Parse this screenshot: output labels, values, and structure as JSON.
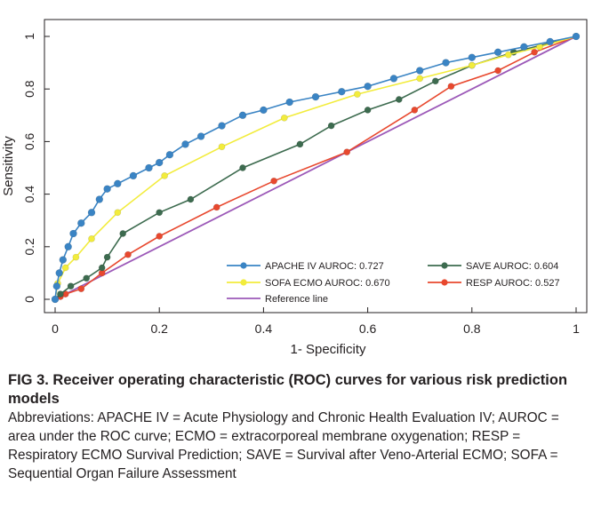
{
  "chart_data": {
    "type": "line",
    "xlabel": "1- Specificity",
    "ylabel": "Sensitivity",
    "xlim": [
      0,
      1
    ],
    "ylim": [
      0,
      1
    ],
    "x_ticks": [
      "0",
      "0.2",
      "0.4",
      "0.6",
      "0.8",
      "1"
    ],
    "y_ticks": [
      "0",
      "0.2",
      "0.4",
      "0.6",
      "0.8",
      "1"
    ],
    "grid": false,
    "legend_position": "bottom-right",
    "series": [
      {
        "name": "APACHE IV AUROC: 0.727",
        "color": "#3a84c4",
        "marker": "circle",
        "points": [
          [
            0,
            0
          ],
          [
            0.003,
            0.05
          ],
          [
            0.008,
            0.1
          ],
          [
            0.015,
            0.15
          ],
          [
            0.025,
            0.2
          ],
          [
            0.035,
            0.25
          ],
          [
            0.05,
            0.29
          ],
          [
            0.07,
            0.33
          ],
          [
            0.085,
            0.38
          ],
          [
            0.1,
            0.42
          ],
          [
            0.12,
            0.44
          ],
          [
            0.15,
            0.47
          ],
          [
            0.18,
            0.5
          ],
          [
            0.2,
            0.52
          ],
          [
            0.22,
            0.55
          ],
          [
            0.25,
            0.59
          ],
          [
            0.28,
            0.62
          ],
          [
            0.32,
            0.66
          ],
          [
            0.36,
            0.7
          ],
          [
            0.4,
            0.72
          ],
          [
            0.45,
            0.75
          ],
          [
            0.5,
            0.77
          ],
          [
            0.55,
            0.79
          ],
          [
            0.6,
            0.81
          ],
          [
            0.65,
            0.84
          ],
          [
            0.7,
            0.87
          ],
          [
            0.75,
            0.9
          ],
          [
            0.8,
            0.92
          ],
          [
            0.85,
            0.94
          ],
          [
            0.9,
            0.96
          ],
          [
            0.95,
            0.98
          ],
          [
            1,
            1
          ]
        ]
      },
      {
        "name": "SOFA ECMO AUROC: 0.670",
        "color": "#f2ec3c",
        "marker": "circle",
        "points": [
          [
            0,
            0
          ],
          [
            0.005,
            0.06
          ],
          [
            0.02,
            0.12
          ],
          [
            0.04,
            0.16
          ],
          [
            0.07,
            0.23
          ],
          [
            0.12,
            0.33
          ],
          [
            0.21,
            0.47
          ],
          [
            0.32,
            0.58
          ],
          [
            0.44,
            0.69
          ],
          [
            0.58,
            0.78
          ],
          [
            0.7,
            0.84
          ],
          [
            0.8,
            0.89
          ],
          [
            0.87,
            0.93
          ],
          [
            0.93,
            0.96
          ],
          [
            1,
            1
          ]
        ]
      },
      {
        "name": "SAVE AUROC: 0.604",
        "color": "#3d6b4f",
        "marker": "circle",
        "points": [
          [
            0,
            0
          ],
          [
            0.01,
            0.02
          ],
          [
            0.03,
            0.05
          ],
          [
            0.06,
            0.08
          ],
          [
            0.09,
            0.12
          ],
          [
            0.1,
            0.16
          ],
          [
            0.13,
            0.25
          ],
          [
            0.2,
            0.33
          ],
          [
            0.26,
            0.38
          ],
          [
            0.36,
            0.5
          ],
          [
            0.47,
            0.59
          ],
          [
            0.53,
            0.66
          ],
          [
            0.6,
            0.72
          ],
          [
            0.66,
            0.76
          ],
          [
            0.73,
            0.83
          ],
          [
            0.8,
            0.89
          ],
          [
            0.88,
            0.94
          ],
          [
            1,
            1
          ]
        ]
      },
      {
        "name": "RESP AUROC: 0.527",
        "color": "#e8482e",
        "marker": "circle",
        "points": [
          [
            0,
            0
          ],
          [
            0.01,
            0.01
          ],
          [
            0.02,
            0.02
          ],
          [
            0.05,
            0.04
          ],
          [
            0.09,
            0.1
          ],
          [
            0.14,
            0.17
          ],
          [
            0.2,
            0.24
          ],
          [
            0.31,
            0.35
          ],
          [
            0.42,
            0.45
          ],
          [
            0.56,
            0.56
          ],
          [
            0.69,
            0.72
          ],
          [
            0.76,
            0.81
          ],
          [
            0.85,
            0.87
          ],
          [
            0.92,
            0.94
          ],
          [
            1,
            1
          ]
        ]
      },
      {
        "name": "Reference line",
        "color": "#9c59b8",
        "marker": "none",
        "points": [
          [
            0,
            0
          ],
          [
            1,
            1
          ]
        ]
      }
    ]
  },
  "caption": {
    "title": "FIG 3.  Receiver operating characteristic (ROC) curves for various risk prediction models",
    "abbreviations": "Abbreviations: APACHE IV = Acute Physiology and Chronic Health Evaluation IV; AUROC = area under the ROC curve; ECMO = extracorporeal membrane oxygenation; RESP = Respiratory ECMO Survival Prediction; SAVE = Survival after Veno-Arterial ECMO; SOFA = Sequential Organ Failure Assessment"
  }
}
